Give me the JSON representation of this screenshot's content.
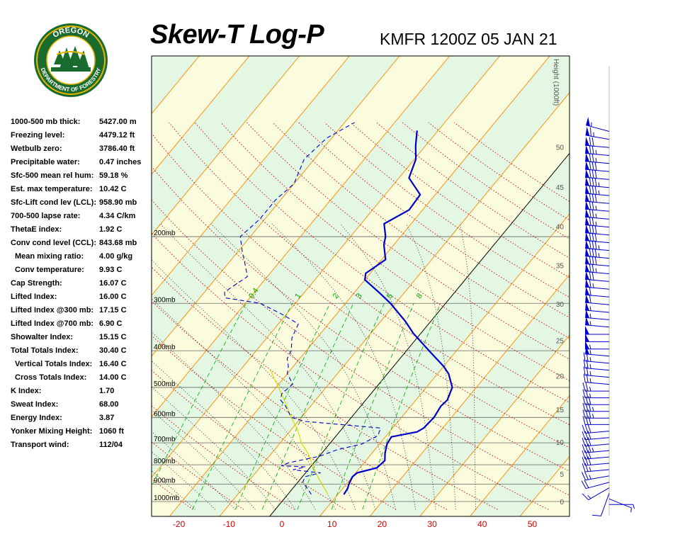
{
  "header": {
    "title": "Skew-T Log-P",
    "station": "KMFR 1200Z 05 JAN 21"
  },
  "logo": {
    "top_text": "OREGON",
    "bottom_text": "DEPARTMENT OF FORESTRY",
    "colors": {
      "ring": "#1a6b2e",
      "gold": "#e8b400",
      "tree": "#1a6b2e"
    }
  },
  "indices": [
    {
      "label": "1000-500 mb thick:",
      "value": "5427.00 m",
      "indent": false
    },
    {
      "label": "Freezing level:",
      "value": "4479.12 ft",
      "indent": false
    },
    {
      "label": "Wetbulb zero:",
      "value": "3786.40 ft",
      "indent": false
    },
    {
      "label": "Precipitable water:",
      "value": "0.47 inches",
      "indent": false
    },
    {
      "label": "Sfc-500 mean rel hum:",
      "value": "59.18 %",
      "indent": false
    },
    {
      "label": "Est. max temperature:",
      "value": "10.42 C",
      "indent": false
    },
    {
      "label": "Sfc-Lift cond lev (LCL):",
      "value": "958.90 mb",
      "indent": false
    },
    {
      "label": "700-500 lapse rate:",
      "value": "4.34 C/km",
      "indent": false
    },
    {
      "label": "ThetaE index:",
      "value": "1.92 C",
      "indent": false
    },
    {
      "label": "Conv cond level (CCL):",
      "value": "843.68 mb",
      "indent": false
    },
    {
      "label": "Mean mixing ratio:",
      "value": "4.00 g/kg",
      "indent": true
    },
    {
      "label": "Conv temperature:",
      "value": "9.93 C",
      "indent": true
    },
    {
      "label": "Cap Strength:",
      "value": "16.07 C",
      "indent": false
    },
    {
      "label": "Lifted Index:",
      "value": "16.00 C",
      "indent": false
    },
    {
      "label": "Lifted Index @300 mb:",
      "value": "17.15 C",
      "indent": false
    },
    {
      "label": "Lifted Index @700 mb:",
      "value": "6.90 C",
      "indent": false
    },
    {
      "label": "Showalter Index:",
      "value": "15.15 C",
      "indent": false
    },
    {
      "label": "Total Totals Index:",
      "value": "30.40 C",
      "indent": false
    },
    {
      "label": "Vertical Totals Index:",
      "value": "16.40 C",
      "indent": true
    },
    {
      "label": "Cross Totals Index:",
      "value": "14.00 C",
      "indent": true
    },
    {
      "label": "K Index:",
      "value": "1.70",
      "indent": false
    },
    {
      "label": "Sweat Index:",
      "value": "68.00",
      "indent": false
    },
    {
      "label": "Energy Index:",
      "value": "3.87",
      "indent": false
    },
    {
      "label": "Yonker Mixing Height:",
      "value": "1060 ft",
      "indent": false
    },
    {
      "label": "Transport wind:",
      "value": "112/04",
      "indent": false
    }
  ],
  "chart_data": {
    "type": "line",
    "title": "Skew-T Log-P",
    "subtitle": "KMFR 1200Z 05 JAN 21",
    "x_ticks": [
      -20,
      -10,
      0,
      10,
      20,
      30,
      40,
      50
    ],
    "pressure_levels": [
      {
        "p": 200,
        "label": "200mb"
      },
      {
        "p": 300,
        "label": "300mb"
      },
      {
        "p": 400,
        "label": "400mb"
      },
      {
        "p": 500,
        "label": "500mb"
      },
      {
        "p": 600,
        "label": "600mb"
      },
      {
        "p": 700,
        "label": "700mb"
      },
      {
        "p": 800,
        "label": "800mb"
      },
      {
        "p": 900,
        "label": "900mb"
      },
      {
        "p": 1000,
        "label": "1000mb"
      }
    ],
    "height_axis_label": "Height (1000ft)",
    "height_ticks": [
      0,
      5,
      10,
      15,
      20,
      25,
      30,
      35,
      40,
      45,
      50
    ],
    "mixing_ratio_labels": [
      "0.4",
      "1",
      "2",
      "3",
      "5",
      "8"
    ],
    "temperature_profile": [
      [
        958,
        11.2
      ],
      [
        925,
        11.0
      ],
      [
        900,
        10.5
      ],
      [
        860,
        10.0
      ],
      [
        840,
        10.3
      ],
      [
        815,
        13.4
      ],
      [
        780,
        13.8
      ],
      [
        745,
        12.6
      ],
      [
        705,
        11.5
      ],
      [
        675,
        11.2
      ],
      [
        655,
        15.5
      ],
      [
        640,
        16.2
      ],
      [
        600,
        16.5
      ],
      [
        560,
        16.0
      ],
      [
        540,
        16.3
      ],
      [
        500,
        15.2
      ],
      [
        460,
        12.2
      ],
      [
        440,
        10.0
      ],
      [
        400,
        4.5
      ],
      [
        360,
        -1.5
      ],
      [
        335,
        -5.0
      ],
      [
        300,
        -11.0
      ],
      [
        282,
        -14.8
      ],
      [
        260,
        -20.0
      ],
      [
        250,
        -20.9
      ],
      [
        230,
        -19.2
      ],
      [
        210,
        -22.0
      ],
      [
        200,
        -23.0
      ],
      [
        185,
        -25.4
      ],
      [
        170,
        -22.7
      ],
      [
        155,
        -23.0
      ],
      [
        140,
        -28.0
      ],
      [
        125,
        -29.7
      ],
      [
        115,
        -32.0
      ],
      [
        105,
        -34.2
      ]
    ],
    "dewpoint_profile": [
      [
        958,
        4.7
      ],
      [
        925,
        3.0
      ],
      [
        890,
        1.0
      ],
      [
        860,
        0.5
      ],
      [
        840,
        3.0
      ],
      [
        825,
        -3.0
      ],
      [
        810,
        -1.0
      ],
      [
        805,
        -6.0
      ],
      [
        790,
        -5.0
      ],
      [
        760,
        0.0
      ],
      [
        730,
        2.5
      ],
      [
        705,
        6.5
      ],
      [
        670,
        8.3
      ],
      [
        640,
        7.6
      ],
      [
        615,
        -8.5
      ],
      [
        600,
        -12.0
      ],
      [
        560,
        -15.0
      ],
      [
        540,
        -17.0
      ],
      [
        520,
        -17.8
      ],
      [
        490,
        -17.2
      ],
      [
        460,
        -20.0
      ],
      [
        440,
        -21.0
      ],
      [
        420,
        -22.5
      ],
      [
        400,
        -23.0
      ],
      [
        370,
        -25.0
      ],
      [
        340,
        -26.0
      ],
      [
        320,
        -31.0
      ],
      [
        300,
        -37.0
      ],
      [
        290,
        -45.0
      ],
      [
        280,
        -46.0
      ],
      [
        255,
        -44.0
      ],
      [
        240,
        -46.0
      ],
      [
        220,
        -49.0
      ],
      [
        200,
        -52.0
      ],
      [
        180,
        -51.0
      ],
      [
        160,
        -51.0
      ],
      [
        145,
        -50.0
      ],
      [
        125,
        -52.0
      ],
      [
        110,
        -51.0
      ],
      [
        100,
        -48.0
      ]
    ],
    "parcel_path": [
      [
        958,
        8.0
      ],
      [
        850,
        2.5
      ],
      [
        800,
        0.0
      ],
      [
        750,
        -2.5
      ],
      [
        700,
        -5.8
      ],
      [
        650,
        -8.5
      ],
      [
        600,
        -12.0
      ],
      [
        550,
        -15.5
      ],
      [
        500,
        -19.5
      ],
      [
        450,
        -24.0
      ]
    ],
    "wind_barbs": [
      {
        "height_kft": 1,
        "dir": 90,
        "speed": 5
      },
      {
        "height_kft": 2,
        "dir": 112,
        "speed": 4
      },
      {
        "height_kft": 3,
        "dir": 200,
        "speed": 10
      },
      {
        "height_kft": 4,
        "dir": 240,
        "speed": 15
      },
      {
        "height_kft": 5,
        "dir": 255,
        "speed": 20
      },
      {
        "height_kft": 6,
        "dir": 260,
        "speed": 25
      },
      {
        "height_kft": 7,
        "dir": 265,
        "speed": 25
      },
      {
        "height_kft": 8,
        "dir": 265,
        "speed": 30
      },
      {
        "height_kft": 9,
        "dir": 265,
        "speed": 30
      },
      {
        "height_kft": 10,
        "dir": 265,
        "speed": 35
      },
      {
        "height_kft": 11,
        "dir": 265,
        "speed": 30
      },
      {
        "height_kft": 12,
        "dir": 265,
        "speed": 30
      },
      {
        "height_kft": 13,
        "dir": 265,
        "speed": 30
      },
      {
        "height_kft": 14,
        "dir": 270,
        "speed": 30
      },
      {
        "height_kft": 15,
        "dir": 270,
        "speed": 35
      },
      {
        "height_kft": 16,
        "dir": 270,
        "speed": 35
      },
      {
        "height_kft": 17,
        "dir": 270,
        "speed": 30
      },
      {
        "height_kft": 18,
        "dir": 270,
        "speed": 25
      },
      {
        "height_kft": 19,
        "dir": 270,
        "speed": 25
      },
      {
        "height_kft": 20,
        "dir": 275,
        "speed": 25
      },
      {
        "height_kft": 21,
        "dir": 275,
        "speed": 25
      },
      {
        "height_kft": 22,
        "dir": 275,
        "speed": 25
      },
      {
        "height_kft": 23,
        "dir": 275,
        "speed": 25
      },
      {
        "height_kft": 24,
        "dir": 275,
        "speed": 55
      },
      {
        "height_kft": 25,
        "dir": 270,
        "speed": 55
      },
      {
        "height_kft": 26,
        "dir": 270,
        "speed": 50
      },
      {
        "height_kft": 27,
        "dir": 270,
        "speed": 50
      },
      {
        "height_kft": 28,
        "dir": 275,
        "speed": 55
      },
      {
        "height_kft": 29,
        "dir": 275,
        "speed": 55
      },
      {
        "height_kft": 30,
        "dir": 275,
        "speed": 55
      },
      {
        "height_kft": 31,
        "dir": 275,
        "speed": 60
      },
      {
        "height_kft": 32,
        "dir": 275,
        "speed": 60
      },
      {
        "height_kft": 33,
        "dir": 275,
        "speed": 65
      },
      {
        "height_kft": 34,
        "dir": 275,
        "speed": 70
      },
      {
        "height_kft": 35,
        "dir": 275,
        "speed": 75
      },
      {
        "height_kft": 36,
        "dir": 275,
        "speed": 80
      },
      {
        "height_kft": 37,
        "dir": 275,
        "speed": 85
      },
      {
        "height_kft": 38,
        "dir": 275,
        "speed": 85
      },
      {
        "height_kft": 39,
        "dir": 275,
        "speed": 80
      },
      {
        "height_kft": 40,
        "dir": 275,
        "speed": 80
      },
      {
        "height_kft": 41,
        "dir": 275,
        "speed": 75
      },
      {
        "height_kft": 42,
        "dir": 275,
        "speed": 75
      },
      {
        "height_kft": 43,
        "dir": 275,
        "speed": 75
      },
      {
        "height_kft": 44,
        "dir": 275,
        "speed": 80
      },
      {
        "height_kft": 45,
        "dir": 275,
        "speed": 85
      },
      {
        "height_kft": 46,
        "dir": 275,
        "speed": 85
      },
      {
        "height_kft": 47,
        "dir": 275,
        "speed": 80
      },
      {
        "height_kft": 48,
        "dir": 275,
        "speed": 80
      },
      {
        "height_kft": 49,
        "dir": 275,
        "speed": 75
      },
      {
        "height_kft": 50,
        "dir": 275,
        "speed": 75
      },
      {
        "height_kft": 51,
        "dir": 275,
        "speed": 70
      },
      {
        "height_kft": 52,
        "dir": 280,
        "speed": 65
      },
      {
        "height_kft": 53,
        "dir": 285,
        "speed": 55
      }
    ],
    "colors": {
      "temperature": "#0000cc",
      "dewpoint": "#0000cc",
      "parcel": "#dddd00",
      "isotherm": "#ff8800",
      "dry_adiabat": "#cc0000",
      "moist_adiabat": "#000000",
      "mixing_ratio": "#00aa00",
      "band_green": "#e3f7e3",
      "band_yellow": "#fbfbdd",
      "freezing_line": "#000000",
      "tick_label": "#cc0000"
    }
  }
}
